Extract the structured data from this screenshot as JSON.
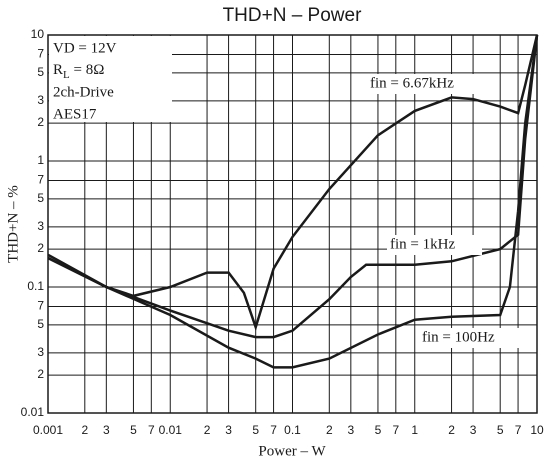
{
  "chart_data": {
    "type": "line",
    "title": "THD+N – Power",
    "xlabel": "Power – W",
    "ylabel": "THD+N – %",
    "xscale": "log",
    "yscale": "log",
    "grid": true,
    "xlim": [
      0.001,
      10
    ],
    "ylim": [
      0.01,
      10
    ],
    "xticks": [
      0.001,
      {
        "value": 0.002,
        "label": "2"
      },
      {
        "value": 0.003,
        "label": "3"
      },
      {
        "value": 0.005,
        "label": "5"
      },
      {
        "value": 0.007,
        "label": "7"
      },
      0.01,
      {
        "value": 0.02,
        "label": "2"
      },
      {
        "value": 0.03,
        "label": "3"
      },
      {
        "value": 0.05,
        "label": "5"
      },
      {
        "value": 0.07,
        "label": "7"
      },
      0.1,
      {
        "value": 0.2,
        "label": "2"
      },
      {
        "value": 0.3,
        "label": "3"
      },
      {
        "value": 0.5,
        "label": "5"
      },
      {
        "value": 0.7,
        "label": "7"
      },
      1,
      2,
      3,
      5,
      7,
      10
    ],
    "yticks": [
      0.01,
      {
        "value": 0.02,
        "label": "2"
      },
      {
        "value": 0.03,
        "label": "3"
      },
      {
        "value": 0.05,
        "label": "5"
      },
      {
        "value": 0.07,
        "label": "7"
      },
      0.1,
      {
        "value": 0.2,
        "label": "2"
      },
      {
        "value": 0.3,
        "label": "3"
      },
      {
        "value": 0.5,
        "label": "5"
      },
      {
        "value": 0.7,
        "label": "7"
      },
      1,
      2,
      3,
      5,
      7,
      10
    ],
    "conditions": {
      "supply": "VD = 12V",
      "load": {
        "symbol": "R",
        "subscript": "L",
        "value": " = 8Ω"
      },
      "drive": "2ch-Drive",
      "filter": "AES17"
    },
    "series": [
      {
        "name": "fin = 6.67kHz",
        "color": "#1a1a1a",
        "x": [
          0.001,
          0.003,
          0.005,
          0.01,
          0.02,
          0.03,
          0.04,
          0.05,
          0.07,
          0.1,
          0.2,
          0.5,
          1,
          2,
          3,
          5,
          7,
          8,
          10
        ],
        "values": [
          0.17,
          0.1,
          0.085,
          0.1,
          0.13,
          0.13,
          0.09,
          0.048,
          0.14,
          0.25,
          0.6,
          1.6,
          2.5,
          3.2,
          3.1,
          2.7,
          2.4,
          4,
          10
        ]
      },
      {
        "name": "fin = 1kHz",
        "color": "#1a1a1a",
        "x": [
          0.001,
          0.003,
          0.01,
          0.03,
          0.05,
          0.07,
          0.1,
          0.2,
          0.3,
          0.4,
          0.5,
          1,
          2,
          5,
          7,
          8,
          10
        ],
        "values": [
          0.18,
          0.1,
          0.065,
          0.045,
          0.04,
          0.04,
          0.045,
          0.08,
          0.12,
          0.15,
          0.15,
          0.15,
          0.16,
          0.2,
          0.26,
          1.5,
          10
        ]
      },
      {
        "name": "fin = 100Hz",
        "color": "#1a1a1a",
        "x": [
          0.001,
          0.003,
          0.01,
          0.03,
          0.05,
          0.07,
          0.1,
          0.2,
          0.5,
          1,
          2,
          5,
          6,
          7,
          8,
          10
        ],
        "values": [
          0.17,
          0.1,
          0.06,
          0.033,
          0.027,
          0.023,
          0.023,
          0.027,
          0.042,
          0.055,
          0.058,
          0.06,
          0.1,
          0.4,
          2,
          10
        ]
      }
    ]
  }
}
